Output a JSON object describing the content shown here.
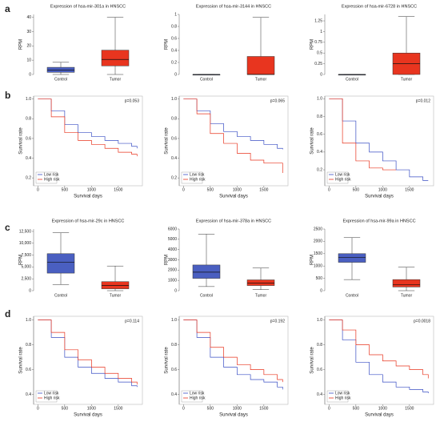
{
  "panel_labels": [
    "a",
    "b",
    "c",
    "d"
  ],
  "chart_data": [
    {
      "type": "box",
      "title": "Expression of hsa-mir-301a in HNSCC",
      "ylabel": "RPM",
      "categories": [
        "Control",
        "Tumor"
      ],
      "colors": [
        "#4a5fc1",
        "#e8351f"
      ],
      "boxes": [
        {
          "min": 0,
          "q1": 1.5,
          "median": 3,
          "q3": 5,
          "max": 8.5
        },
        {
          "min": 0,
          "q1": 6,
          "median": 10.5,
          "q3": 17,
          "max": 40
        }
      ],
      "ylim": [
        0,
        42
      ],
      "yticks": [
        0,
        10,
        20,
        30,
        40
      ]
    },
    {
      "type": "box",
      "title": "Expression of hsa-mir-3144 in HNSCC",
      "ylabel": "RPM",
      "categories": [
        "Control",
        "Tumor"
      ],
      "colors": [
        "#4a5fc1",
        "#e8351f"
      ],
      "boxes": [
        {
          "min": 0,
          "q1": 0,
          "median": 0,
          "q3": 0,
          "max": 0
        },
        {
          "min": 0,
          "q1": 0,
          "median": 0,
          "q3": 0.3,
          "max": 0.95
        }
      ],
      "ylim": [
        0,
        1
      ],
      "yticks": [
        0,
        0.2,
        0.4,
        0.6,
        0.8,
        1
      ]
    },
    {
      "type": "box",
      "title": "Expression of hsa-mir-6728 in HNSCC",
      "ylabel": "RPM",
      "categories": [
        "Control",
        "Tumor"
      ],
      "colors": [
        "#4a5fc1",
        "#e8351f"
      ],
      "boxes": [
        {
          "min": 0,
          "q1": 0,
          "median": 0,
          "q3": 0,
          "max": 0
        },
        {
          "min": 0,
          "q1": 0,
          "median": 0.25,
          "q3": 0.5,
          "max": 1.35
        }
      ],
      "ylim": [
        0,
        1.4
      ],
      "yticks": [
        0,
        0.25,
        0.5,
        0.75,
        1,
        1.25
      ]
    },
    {
      "type": "line",
      "xlabel": "Survival days",
      "ylabel": "Survival rate",
      "annotation": "p=0.053",
      "legend": "bottom-left",
      "x": [
        0,
        250,
        500,
        750,
        1000,
        1250,
        1500,
        1750,
        1850
      ],
      "series": [
        {
          "name": "Low risk",
          "color": "#3a4fc4",
          "values": [
            1,
            0.88,
            0.74,
            0.66,
            0.62,
            0.58,
            0.55,
            0.52,
            0.5
          ]
        },
        {
          "name": "High risk",
          "color": "#e8351f",
          "values": [
            1,
            0.82,
            0.66,
            0.58,
            0.54,
            0.5,
            0.46,
            0.44,
            0.42
          ]
        }
      ],
      "xlim": [
        -80,
        1950
      ],
      "xticks": [
        0,
        500,
        1000,
        1500
      ],
      "ylim": [
        0.12,
        1.03
      ],
      "yticks": [
        0.2,
        0.4,
        0.6,
        0.8,
        {
          "value": 1,
          "label": "1.0"
        }
      ]
    },
    {
      "type": "line",
      "xlabel": "Survival days",
      "ylabel": "Survival rate",
      "annotation": "p=0.065",
      "legend": "bottom-left",
      "x": [
        0,
        250,
        500,
        750,
        1000,
        1250,
        1500,
        1750,
        1850
      ],
      "series": [
        {
          "name": "Low risk",
          "color": "#3a4fc4",
          "values": [
            1,
            0.88,
            0.75,
            0.67,
            0.62,
            0.58,
            0.54,
            0.5,
            0.49
          ]
        },
        {
          "name": "High risk",
          "color": "#e8351f",
          "values": [
            1,
            0.85,
            0.65,
            0.55,
            0.45,
            0.38,
            0.35,
            0.35,
            0.25
          ]
        }
      ],
      "xlim": [
        -80,
        1950
      ],
      "xticks": [
        0,
        500,
        1000,
        1500
      ],
      "ylim": [
        0.12,
        1.03
      ],
      "yticks": [
        0.2,
        0.4,
        0.6,
        0.8,
        {
          "value": 1,
          "label": "1.0"
        }
      ]
    },
    {
      "type": "line",
      "xlabel": "Survival days",
      "ylabel": "Survival rate",
      "annotation": "p=0.012",
      "legend": "bottom-left",
      "x": [
        0,
        250,
        500,
        750,
        1000,
        1250,
        1500,
        1750,
        1850
      ],
      "series": [
        {
          "name": "Low risk",
          "color": "#3a4fc4",
          "values": [
            1,
            0.75,
            0.5,
            0.4,
            0.3,
            0.2,
            0.12,
            0.08,
            0.08
          ]
        },
        {
          "name": "High risk",
          "color": "#e8351f",
          "values": [
            1,
            0.5,
            0.3,
            0.22,
            0.2,
            0.2,
            null,
            null,
            null
          ]
        }
      ],
      "xlim": [
        -80,
        1950
      ],
      "xticks": [
        0,
        500,
        1000,
        1500
      ],
      "ylim": [
        0.02,
        1.03
      ],
      "yticks": [
        0.2,
        0.4,
        0.6,
        0.8,
        {
          "value": 1,
          "label": "1.0"
        }
      ]
    },
    {
      "type": "box",
      "title": "Expression of hsa-mir-29c in HNSCC",
      "ylabel": "RPM",
      "categories": [
        "Control",
        "Tumor"
      ],
      "colors": [
        "#4a5fc1",
        "#e8351f"
      ],
      "boxes": [
        {
          "min": 1300,
          "q1": 3700,
          "median": 6000,
          "q3": 7800,
          "max": 12200
        },
        {
          "min": 0,
          "q1": 400,
          "median": 1100,
          "q3": 1900,
          "max": 5200
        }
      ],
      "ylim": [
        0,
        13000
      ],
      "yticks": [
        0,
        {
          "value": 2500,
          "label": "2,500"
        },
        {
          "value": 5000,
          "label": "5,000"
        },
        {
          "value": 7500,
          "label": "7,500"
        },
        {
          "value": 10000,
          "label": "10,000"
        },
        {
          "value": 12500,
          "label": "12,500"
        }
      ]
    },
    {
      "type": "box",
      "title": "Expression of hsa-mir-378a in HNSCC",
      "ylabel": "RPM",
      "categories": [
        "Control",
        "Tumor"
      ],
      "colors": [
        "#4a5fc1",
        "#e8351f"
      ],
      "boxes": [
        {
          "min": 400,
          "q1": 1200,
          "median": 1800,
          "q3": 2500,
          "max": 5500
        },
        {
          "min": 100,
          "q1": 500,
          "median": 750,
          "q3": 1050,
          "max": 2200
        }
      ],
      "ylim": [
        0,
        6000
      ],
      "yticks": [
        0,
        1000,
        2000,
        3000,
        4000,
        5000,
        6000
      ]
    },
    {
      "type": "box",
      "title": "Expression of hsa-mir-99a in HNSCC",
      "ylabel": "RPM",
      "categories": [
        "Control",
        "Tumor"
      ],
      "colors": [
        "#4a5fc1",
        "#e8351f"
      ],
      "boxes": [
        {
          "min": 450,
          "q1": 1150,
          "median": 1350,
          "q3": 1500,
          "max": 2150
        },
        {
          "min": 0,
          "q1": 150,
          "median": 250,
          "q3": 450,
          "max": 950
        }
      ],
      "ylim": [
        0,
        2500
      ],
      "yticks": [
        0,
        500,
        1000,
        1500,
        2000,
        2500
      ]
    },
    {
      "type": "line",
      "xlabel": "Survival days",
      "ylabel": "Survival rate",
      "annotation": "p=0.114",
      "legend": "bottom-left",
      "x": [
        0,
        250,
        500,
        750,
        1000,
        1250,
        1500,
        1750,
        1850
      ],
      "series": [
        {
          "name": "Low risk",
          "color": "#3a4fc4",
          "values": [
            1,
            0.86,
            0.7,
            0.62,
            0.57,
            0.53,
            0.5,
            0.47,
            0.46
          ]
        },
        {
          "name": "High risk",
          "color": "#e8351f",
          "values": [
            1,
            0.9,
            0.76,
            0.68,
            0.62,
            0.57,
            0.53,
            0.5,
            0.48
          ]
        }
      ],
      "xlim": [
        -80,
        1950
      ],
      "xticks": [
        0,
        500,
        1000,
        1500
      ],
      "ylim": [
        0.32,
        1.03
      ],
      "yticks": [
        0.4,
        0.6,
        0.8,
        {
          "value": 1,
          "label": "1.0"
        }
      ]
    },
    {
      "type": "line",
      "xlabel": "Survival days",
      "ylabel": "Survival rate",
      "annotation": "p=0.192",
      "legend": "bottom-left",
      "x": [
        0,
        250,
        500,
        750,
        1000,
        1250,
        1500,
        1750,
        1850
      ],
      "series": [
        {
          "name": "Low risk",
          "color": "#3a4fc4",
          "values": [
            1,
            0.86,
            0.7,
            0.62,
            0.56,
            0.52,
            0.5,
            0.46,
            0.44
          ]
        },
        {
          "name": "High risk",
          "color": "#e8351f",
          "values": [
            1,
            0.9,
            0.78,
            0.7,
            0.64,
            0.6,
            0.56,
            0.52,
            0.5
          ]
        }
      ],
      "xlim": [
        -80,
        1950
      ],
      "xticks": [
        0,
        500,
        1000,
        1500
      ],
      "ylim": [
        0.32,
        1.03
      ],
      "yticks": [
        0.4,
        0.6,
        0.8,
        {
          "value": 1,
          "label": "1.0"
        }
      ]
    },
    {
      "type": "line",
      "xlabel": "Survival days",
      "ylabel": "Survival rate",
      "annotation": "p=0.0018",
      "legend": "bottom-left",
      "x": [
        0,
        250,
        500,
        750,
        1000,
        1250,
        1500,
        1750,
        1850
      ],
      "series": [
        {
          "name": "Low risk",
          "color": "#3a4fc4",
          "values": [
            1,
            0.84,
            0.66,
            0.56,
            0.5,
            0.46,
            0.44,
            0.42,
            0.41
          ]
        },
        {
          "name": "High risk",
          "color": "#e8351f",
          "values": [
            1,
            0.92,
            0.8,
            0.72,
            0.67,
            0.63,
            0.6,
            0.56,
            0.53
          ]
        }
      ],
      "xlim": [
        -80,
        1950
      ],
      "xticks": [
        0,
        500,
        1000,
        1500
      ],
      "ylim": [
        0.32,
        1.03
      ],
      "yticks": [
        0.4,
        0.6,
        0.8,
        {
          "value": 1,
          "label": "1.0"
        }
      ]
    }
  ]
}
